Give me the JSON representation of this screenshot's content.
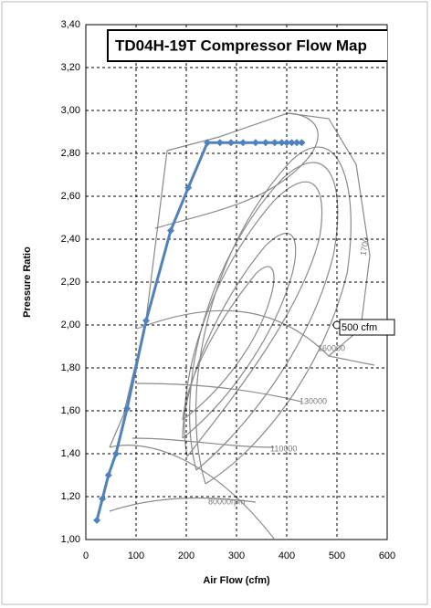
{
  "chart_data": {
    "type": "line",
    "title": "TD04H-19T Compressor Flow Map",
    "x_label": "Air Flow (cfm)",
    "y_label": "Pressure Ratio",
    "xlim": [
      0,
      600
    ],
    "xticks": [
      0,
      100,
      200,
      300,
      400,
      500,
      600
    ],
    "ylim": [
      1.0,
      3.4
    ],
    "yticks": [
      {
        "value": 1.0,
        "label": "1,00"
      },
      {
        "value": 1.2,
        "label": "1,20"
      },
      {
        "value": 1.4,
        "label": "1,40"
      },
      {
        "value": 1.6,
        "label": "1,60"
      },
      {
        "value": 1.8,
        "label": "1,80"
      },
      {
        "value": 2.0,
        "label": "2,00"
      },
      {
        "value": 2.2,
        "label": "2,20"
      },
      {
        "value": 2.4,
        "label": "2,40"
      },
      {
        "value": 2.6,
        "label": "2,60"
      },
      {
        "value": 2.8,
        "label": "2,80"
      },
      {
        "value": 3.0,
        "label": "3,00"
      },
      {
        "value": 3.2,
        "label": "3,20"
      },
      {
        "value": 3.4,
        "label": "3,40"
      }
    ],
    "grid": true,
    "series": [
      {
        "color": "#4f81bd",
        "x": [
          22,
          33,
          45,
          60,
          82,
          120,
          169,
          204,
          242,
          267,
          289,
          313,
          338,
          358,
          376,
          390,
          400,
          410,
          420,
          430
        ],
        "values": [
          1.09,
          1.19,
          1.3,
          1.4,
          1.61,
          2.02,
          2.44,
          2.64,
          2.85,
          2.85,
          2.85,
          2.85,
          2.85,
          2.85,
          2.85,
          2.85,
          2.85,
          2.85,
          2.85,
          2.85
        ]
      }
    ],
    "annotation": {
      "text": "500 cfm",
      "x": 500,
      "y": 2.0
    },
    "map_labels": [
      "1700",
      "160000",
      "130000",
      "110000",
      "80000rpm"
    ]
  }
}
